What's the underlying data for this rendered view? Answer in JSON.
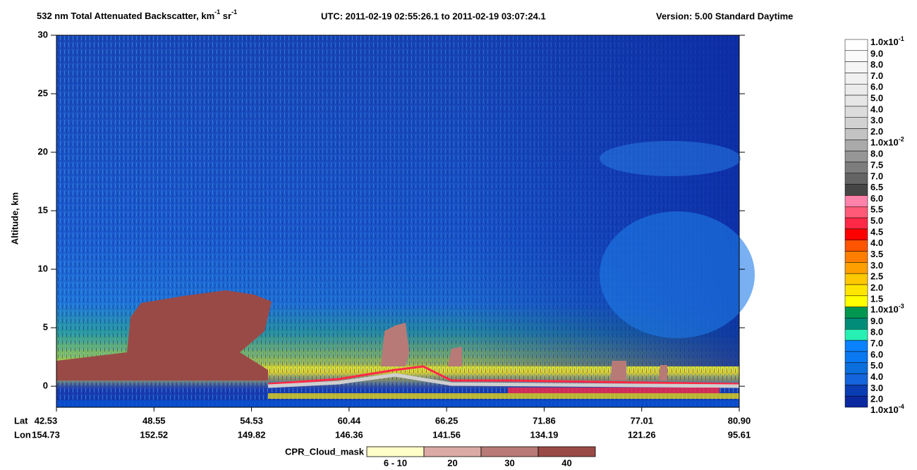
{
  "chart_data": {
    "type": "curtain",
    "title": [
      "532 nm Total Attenuated Backscatter, km",
      "-1",
      " sr",
      "-1"
    ],
    "utc": "UTC:  2011-02-19 02:55:26.1  to  2011-02-19 03:07:24.1",
    "version": "Version: 5.00  Standard  Daytime",
    "y_label": "Altitude, km",
    "ylim": [
      -1.8,
      30
    ],
    "yticks": [
      0,
      5,
      10,
      15,
      20,
      25,
      30
    ],
    "lat_label": "Lat",
    "lon_label": "Lon",
    "lat_ticks": [
      "42.53",
      "48.55",
      "54.53",
      "60.44",
      "66.25",
      "71.86",
      "77.01",
      "80.90"
    ],
    "lon_ticks": [
      "154.73",
      "152.52",
      "149.82",
      "146.36",
      "141.56",
      "134.19",
      "121.26",
      "95.61"
    ],
    "colorbar": {
      "labels": [
        {
          "mantissa": "1.0x10",
          "exponent": "-1"
        },
        "9.0",
        "8.0",
        "7.0",
        "6.0",
        "5.0",
        "4.0",
        "3.0",
        "2.0",
        {
          "mantissa": "1.0x10",
          "exponent": "-2"
        },
        "8.0",
        "7.5",
        "7.0",
        "6.5",
        "6.0",
        "5.5",
        "5.0",
        "4.5",
        "4.0",
        "3.5",
        "3.0",
        "2.5",
        "2.0",
        "1.5",
        {
          "mantissa": "1.0x10",
          "exponent": "-3"
        },
        "9.0",
        "8.0",
        "7.0",
        "6.0",
        "5.0",
        "4.0",
        "3.0",
        "2.0",
        {
          "mantissa": "1.0x10",
          "exponent": "-4"
        }
      ],
      "colors": [
        "#ffffff",
        "#fafafa",
        "#f5f5f5",
        "#f0f0f0",
        "#ebebeb",
        "#e6e6e6",
        "#dcdcdc",
        "#d2d2d2",
        "#c3c3c3",
        "#aaaaaa",
        "#969696",
        "#7d7d7d",
        "#646464",
        "#464646",
        "#ff82aa",
        "#ff5a78",
        "#ff2846",
        "#ff0000",
        "#ff5500",
        "#ff7d00",
        "#ffa000",
        "#ffc800",
        "#ffe600",
        "#ffff00",
        "#009650",
        "#008c78",
        "#28f0b4",
        "#0a82ff",
        "#0a78f0",
        "#0a6edc",
        "#1464dc",
        "#0a3cb4",
        "#0a28a0"
      ]
    },
    "cloud_mask": {
      "title": "CPR_Cloud_mask",
      "labels": [
        "6 - 10",
        "20",
        "30",
        "40"
      ],
      "colors": [
        "#ffffc8",
        "#dcaaa4",
        "#b87a76",
        "#9a4a46"
      ]
    }
  }
}
